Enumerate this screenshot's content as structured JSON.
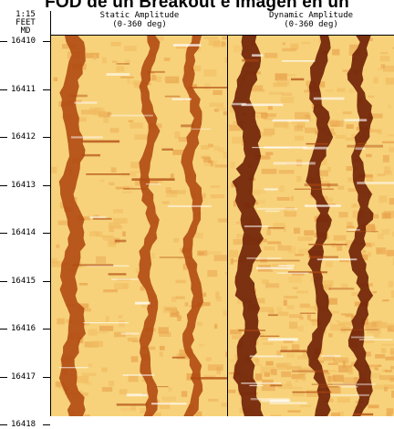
{
  "title": "FOD de un Breakout e Imagen en un",
  "scale": {
    "ratio": "1:15",
    "unit": "FEET",
    "reference": "MD"
  },
  "depth_labels": [
    "16410",
    "16411",
    "16412",
    "16413",
    "16414",
    "16415",
    "16416",
    "16417",
    "16418"
  ],
  "panels": [
    {
      "name": "Static Amplitude",
      "range": "(0-360 deg)"
    },
    {
      "name": "Dynamic Amplitude",
      "range": "(0-360 deg)"
    }
  ],
  "colors": {
    "light": "#f7d27a",
    "mid": "#e8a04a",
    "dark": "#b04a12",
    "darkest": "#6e1f05"
  }
}
